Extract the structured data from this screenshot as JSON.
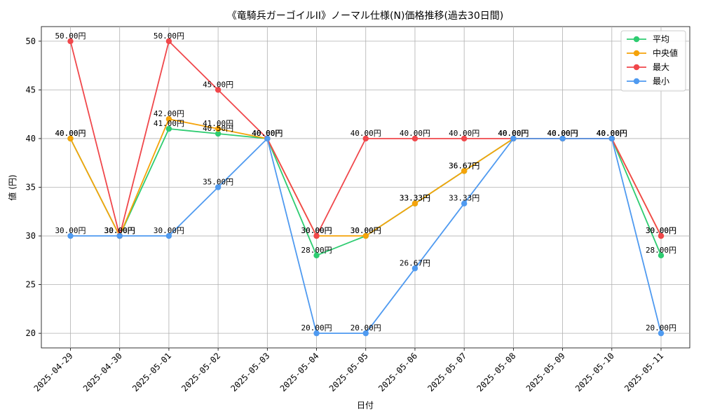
{
  "chart_data": {
    "type": "line",
    "title": "《竜騎兵ガーゴイルII》ノーマル仕様(N)価格推移(過去30日間)",
    "xlabel": "日付",
    "ylabel": "値 (円)",
    "ylim": [
      18.5,
      51.5
    ],
    "yticks": [
      20,
      25,
      30,
      35,
      40,
      45,
      50
    ],
    "grid": true,
    "legend_position": "top-right",
    "label_suffix": "円",
    "categories": [
      "2025-04-29",
      "2025-04-30",
      "2025-05-01",
      "2025-05-02",
      "2025-05-03",
      "2025-05-04",
      "2025-05-05",
      "2025-05-06",
      "2025-05-07",
      "2025-05-08",
      "2025-05-09",
      "2025-05-10",
      "2025-05-11"
    ],
    "series": [
      {
        "name": "平均",
        "color": "#2ecc71",
        "values": [
          40,
          30,
          41,
          40.5,
          40,
          28,
          30,
          33.33,
          36.67,
          40,
          40,
          40,
          28
        ]
      },
      {
        "name": "中央値",
        "color": "#f5a30a",
        "values": [
          40,
          30,
          42,
          41,
          40,
          30,
          30,
          33.33,
          36.67,
          40,
          40,
          40,
          30
        ]
      },
      {
        "name": "最大",
        "color": "#f0474b",
        "values": [
          50,
          30,
          50,
          45,
          40,
          30,
          40,
          40,
          40,
          40,
          40,
          40,
          30
        ]
      },
      {
        "name": "最小",
        "color": "#4f9af0",
        "values": [
          30,
          30,
          30,
          35,
          40,
          20,
          20,
          26.67,
          33.33,
          40,
          40,
          40,
          20
        ]
      }
    ]
  }
}
